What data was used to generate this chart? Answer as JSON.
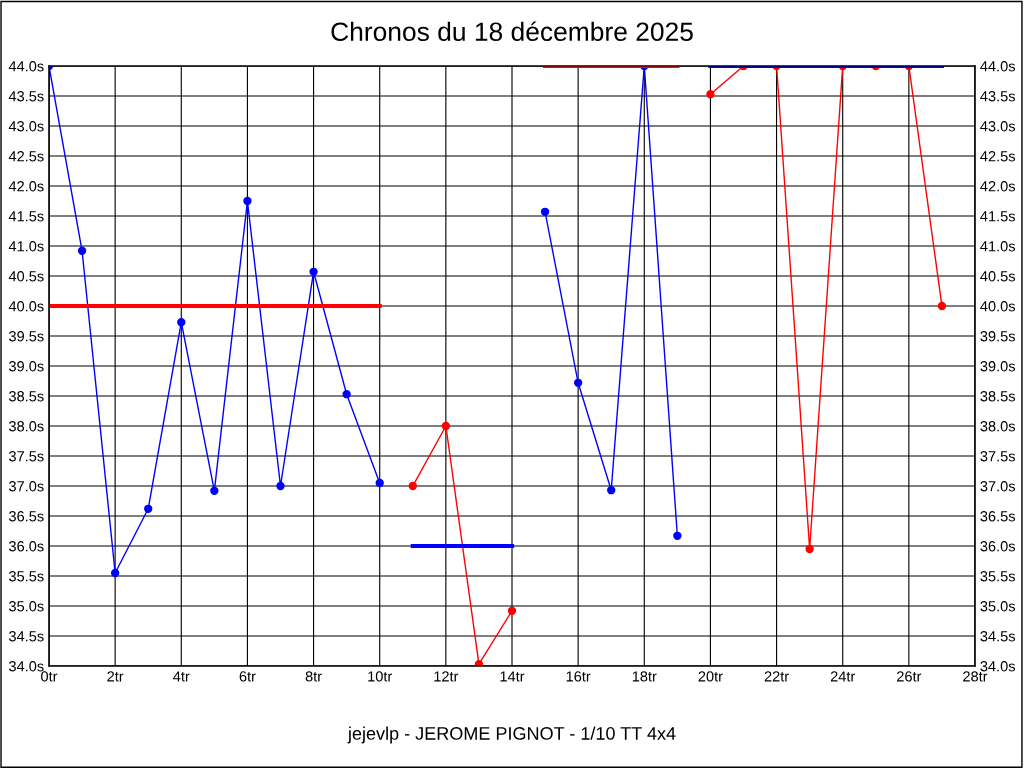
{
  "chart_data": {
    "type": "line",
    "title": "Chronos du 18 décembre 2025",
    "annotations": [
      "jejevlp - JEROME PIGNOT - 1/10 TT 4x4"
    ],
    "xlim": [
      0,
      28
    ],
    "xticks": [
      {
        "value": 0,
        "label": "0tr"
      },
      {
        "value": 2,
        "label": "2tr"
      },
      {
        "value": 4,
        "label": "4tr"
      },
      {
        "value": 6,
        "label": "6tr"
      },
      {
        "value": 8,
        "label": "8tr"
      },
      {
        "value": 10,
        "label": "10tr"
      },
      {
        "value": 12,
        "label": "12tr"
      },
      {
        "value": 14,
        "label": "14tr"
      },
      {
        "value": 16,
        "label": "16tr"
      },
      {
        "value": 18,
        "label": "18tr"
      },
      {
        "value": 20,
        "label": "20tr"
      },
      {
        "value": 22,
        "label": "22tr"
      },
      {
        "value": 24,
        "label": "24tr"
      },
      {
        "value": 26,
        "label": "26tr"
      },
      {
        "value": 28,
        "label": "28tr"
      }
    ],
    "ylim": [
      34,
      44
    ],
    "yticks": [
      {
        "value": 34,
        "label": "34.0s"
      },
      {
        "value": 34.5,
        "label": "34.5s"
      },
      {
        "value": 35,
        "label": "35.0s"
      },
      {
        "value": 35.5,
        "label": "35.5s"
      },
      {
        "value": 36,
        "label": "36.0s"
      },
      {
        "value": 36.5,
        "label": "36.5s"
      },
      {
        "value": 37,
        "label": "37.0s"
      },
      {
        "value": 37.5,
        "label": "37.5s"
      },
      {
        "value": 38,
        "label": "38.0s"
      },
      {
        "value": 38.5,
        "label": "38.5s"
      },
      {
        "value": 39,
        "label": "39.0s"
      },
      {
        "value": 39.5,
        "label": "39.5s"
      },
      {
        "value": 40,
        "label": "40.0s"
      },
      {
        "value": 40.5,
        "label": "40.5s"
      },
      {
        "value": 41,
        "label": "41.0s"
      },
      {
        "value": 41.5,
        "label": "41.5s"
      },
      {
        "value": 42,
        "label": "42.0s"
      },
      {
        "value": 42.5,
        "label": "42.5s"
      },
      {
        "value": 43,
        "label": "43.0s"
      },
      {
        "value": 43.5,
        "label": "43.5s"
      },
      {
        "value": 44,
        "label": "44.0s"
      }
    ],
    "y2lim": [
      34,
      44
    ],
    "y2ticks": [
      {
        "value": 34,
        "label": "34.0s"
      },
      {
        "value": 34.5,
        "label": "34.5s"
      },
      {
        "value": 35,
        "label": "35.0s"
      },
      {
        "value": 35.5,
        "label": "35.5s"
      },
      {
        "value": 36,
        "label": "36.0s"
      },
      {
        "value": 36.5,
        "label": "36.5s"
      },
      {
        "value": 37,
        "label": "37.0s"
      },
      {
        "value": 37.5,
        "label": "37.5s"
      },
      {
        "value": 38,
        "label": "38.0s"
      },
      {
        "value": 38.5,
        "label": "38.5s"
      },
      {
        "value": 39,
        "label": "39.0s"
      },
      {
        "value": 39.5,
        "label": "39.5s"
      },
      {
        "value": 40,
        "label": "40.0s"
      },
      {
        "value": 40.5,
        "label": "40.5s"
      },
      {
        "value": 41,
        "label": "41.0s"
      },
      {
        "value": 41.5,
        "label": "41.5s"
      },
      {
        "value": 42,
        "label": "42.0s"
      },
      {
        "value": 42.5,
        "label": "42.5s"
      },
      {
        "value": 43,
        "label": "43.0s"
      },
      {
        "value": 43.5,
        "label": "43.5s"
      },
      {
        "value": 44,
        "label": "44.0s"
      }
    ],
    "grid": true,
    "line_style": "solid",
    "series": [
      {
        "color": "#0000ff",
        "marker": "circle",
        "x": [
          0,
          1,
          2,
          3,
          4,
          5,
          6,
          7,
          8,
          9,
          10
        ],
        "values": [
          44.0,
          40.92,
          35.55,
          36.62,
          39.73,
          36.92,
          41.75,
          37.0,
          40.57,
          38.53,
          37.05
        ]
      },
      {
        "color": "#ff0000",
        "marker": "circle",
        "x": [
          11,
          12,
          13,
          14
        ],
        "values": [
          37.0,
          38.0,
          34.03,
          34.92
        ]
      },
      {
        "color": "#0000ff",
        "marker": "circle",
        "x": [
          15,
          16,
          17,
          18,
          19
        ],
        "values": [
          41.57,
          38.72,
          36.93,
          44.0,
          36.17
        ]
      },
      {
        "color": "#ff0000",
        "marker": "circle",
        "x": [
          20,
          21,
          22,
          23,
          24,
          25,
          26,
          27
        ],
        "values": [
          43.53,
          44.0,
          44.0,
          35.95,
          44.0,
          44.0,
          44.0,
          40.0
        ]
      },
      {
        "color": "#ff0000",
        "marker": "none",
        "x": [
          0,
          10
        ],
        "values": [
          40.0,
          40.0
        ]
      },
      {
        "color": "#0000ff",
        "marker": "none",
        "x": [
          11,
          14
        ],
        "values": [
          36.0,
          36.0
        ]
      },
      {
        "color": "#ff0000",
        "marker": "none",
        "x": [
          15,
          19
        ],
        "values": [
          44.0,
          44.0
        ]
      },
      {
        "color": "#0000ff",
        "marker": "none",
        "x": [
          20,
          27
        ],
        "values": [
          44.0,
          44.0
        ]
      }
    ]
  }
}
